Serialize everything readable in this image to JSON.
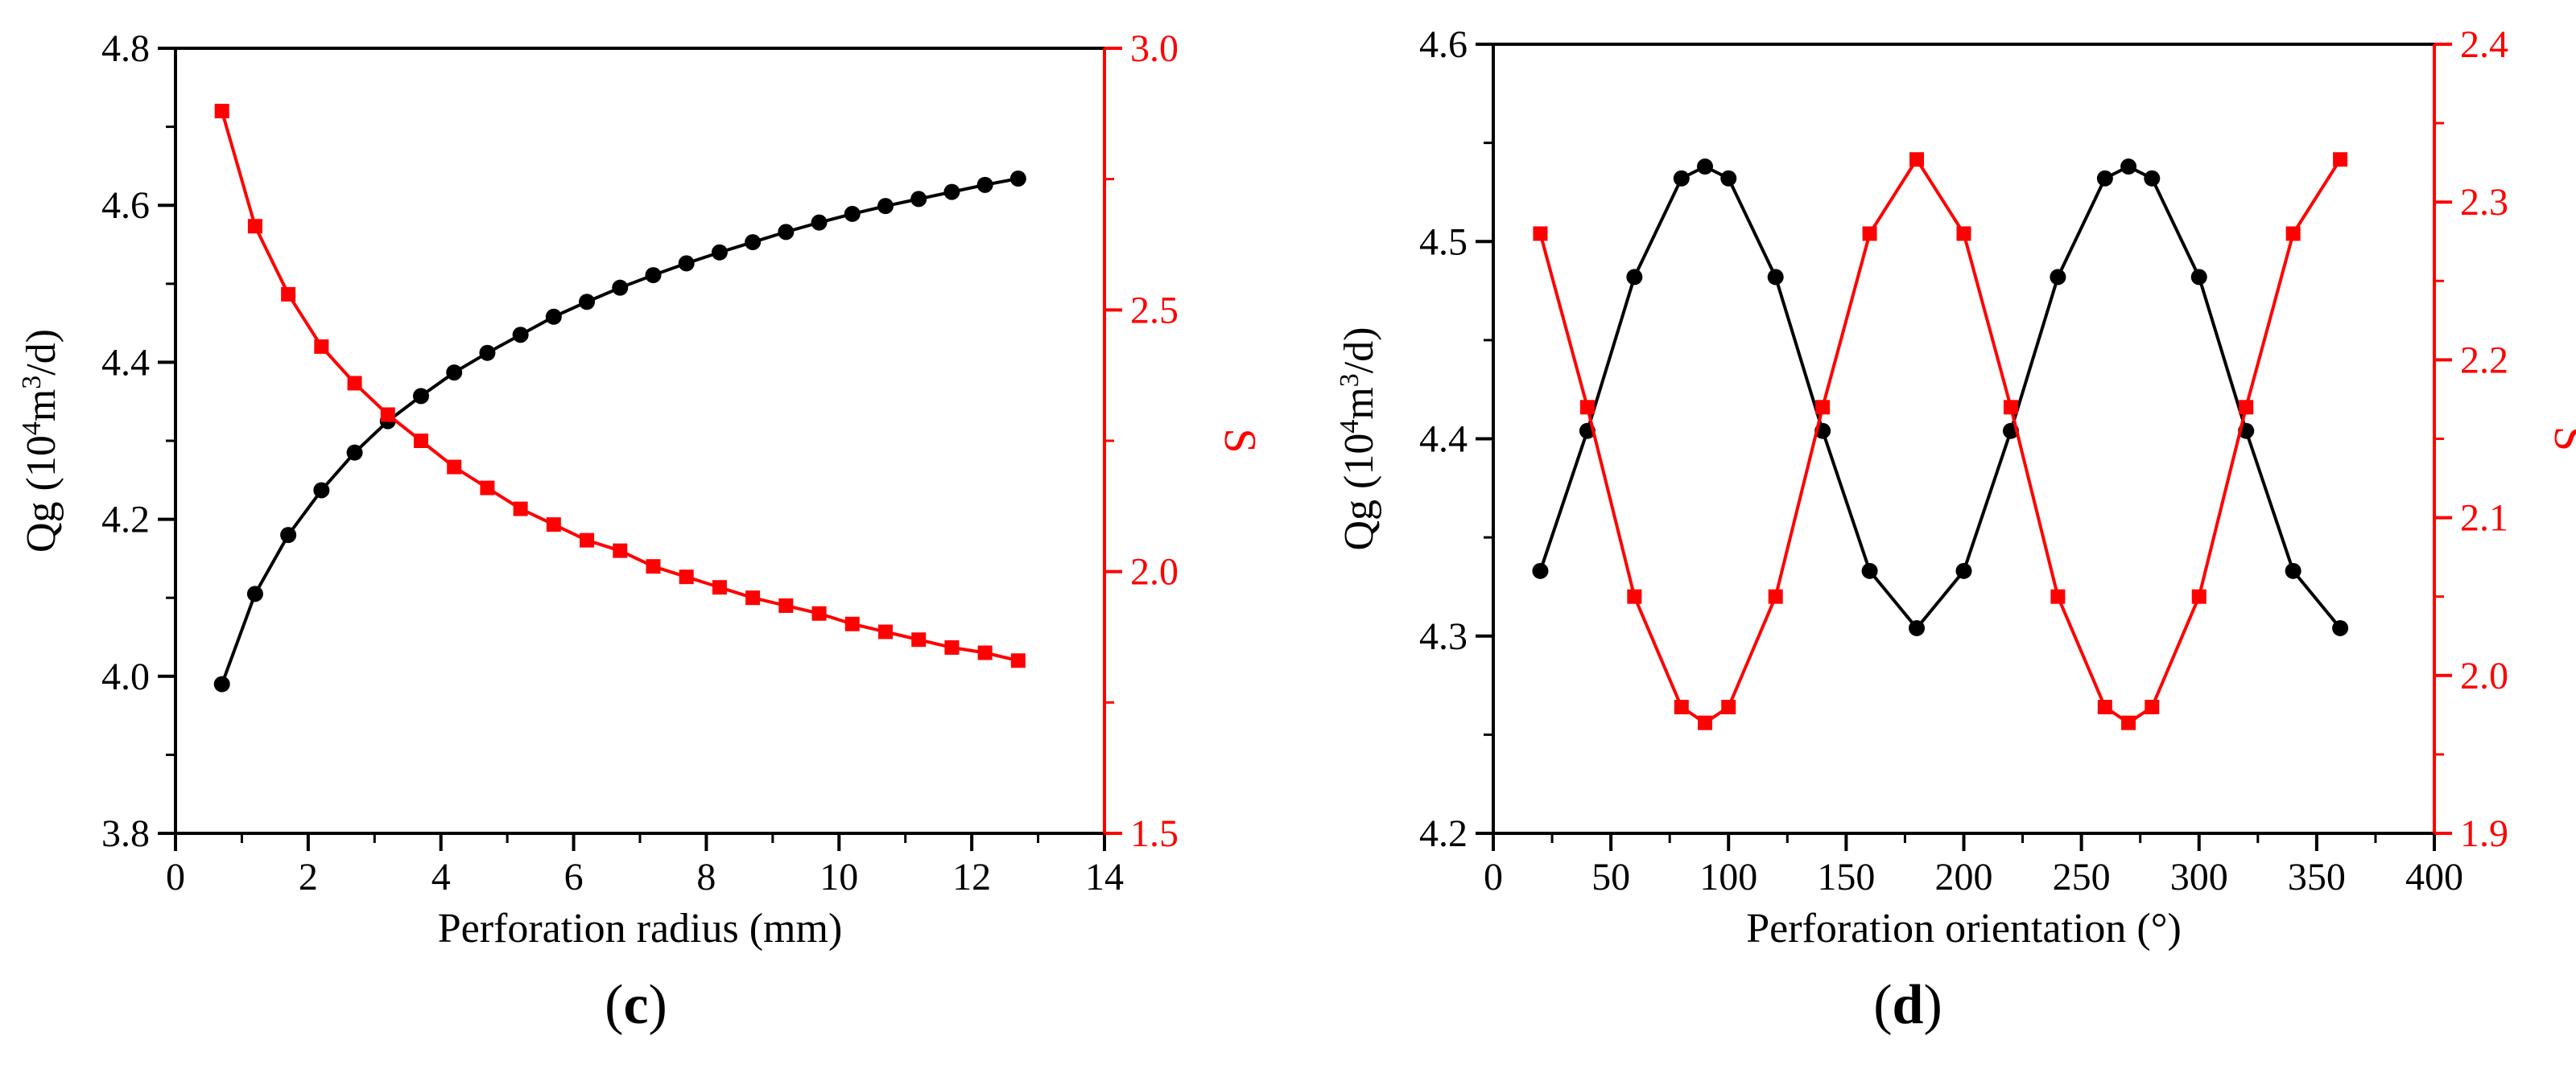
{
  "colors": {
    "qg": "#000000",
    "s": "#ff0000",
    "axis": "#000000"
  },
  "chart_data": [
    {
      "type": "line",
      "panel_label": "c",
      "xlabel": "Perforation radius (mm)",
      "ylabel": "Qg (10",
      "ylabel_sup1": "4",
      "ylabel_mid": "m",
      "ylabel_sup2": "3",
      "ylabel_end": "/d)",
      "y2label": "S",
      "xlim": [
        0,
        14
      ],
      "ylim": [
        3.8,
        4.8
      ],
      "y2lim": [
        1.5,
        3.0
      ],
      "xticks": [
        "0",
        "2",
        "4",
        "6",
        "8",
        "10",
        "12",
        "14"
      ],
      "yticks": [
        "3.8",
        "4.0",
        "4.2",
        "4.4",
        "4.6",
        "4.8"
      ],
      "y2ticks": [
        "1.5",
        "2.0",
        "2.5",
        "3.0"
      ],
      "x": [
        0.7,
        1.2,
        1.7,
        2.2,
        2.7,
        3.2,
        3.7,
        4.2,
        4.7,
        5.2,
        5.7,
        6.2,
        6.7,
        7.2,
        7.7,
        8.2,
        8.7,
        9.2,
        9.7,
        10.2,
        10.7,
        11.2,
        11.7,
        12.2,
        12.7
      ],
      "series": [
        {
          "name": "Qg",
          "axis": "left",
          "marker": "circle",
          "values": [
            3.99,
            4.105,
            4.18,
            4.237,
            4.285,
            4.325,
            4.357,
            4.387,
            4.412,
            4.435,
            4.458,
            4.477,
            4.495,
            4.511,
            4.526,
            4.54,
            4.553,
            4.566,
            4.578,
            4.589,
            4.599,
            4.608,
            4.617,
            4.626,
            4.634
          ]
        },
        {
          "name": "S",
          "axis": "right",
          "marker": "square",
          "values": [
            2.88,
            2.66,
            2.53,
            2.43,
            2.36,
            2.3,
            2.25,
            2.2,
            2.16,
            2.12,
            2.09,
            2.06,
            2.04,
            2.01,
            1.99,
            1.97,
            1.95,
            1.935,
            1.92,
            1.9,
            1.885,
            1.87,
            1.855,
            1.845,
            1.83
          ]
        }
      ]
    },
    {
      "type": "line",
      "panel_label": "d",
      "xlabel": "Perforation orientation (°)",
      "ylabel": "Qg (10",
      "ylabel_sup1": "4",
      "ylabel_mid": "m",
      "ylabel_sup2": "3",
      "ylabel_end": "/d)",
      "y2label": "S",
      "xlim": [
        0,
        400
      ],
      "ylim": [
        4.2,
        4.6
      ],
      "y2lim": [
        1.9,
        2.4
      ],
      "xticks": [
        "0",
        "50",
        "100",
        "150",
        "200",
        "250",
        "300",
        "350",
        "400"
      ],
      "yticks": [
        "4.2",
        "4.3",
        "4.4",
        "4.5",
        "4.6"
      ],
      "y2ticks": [
        "1.9",
        "2.0",
        "2.1",
        "2.2",
        "2.3",
        "2.4"
      ],
      "x": [
        20,
        40,
        60,
        80,
        90,
        100,
        120,
        140,
        160,
        180,
        200,
        220,
        240,
        260,
        270,
        280,
        300,
        320,
        340,
        360
      ],
      "series": [
        {
          "name": "Qg",
          "axis": "left",
          "marker": "circle",
          "values": [
            4.333,
            4.404,
            4.482,
            4.532,
            4.538,
            4.532,
            4.482,
            4.404,
            4.333,
            4.304,
            4.333,
            4.404,
            4.482,
            4.532,
            4.538,
            4.532,
            4.482,
            4.404,
            4.333,
            4.304
          ]
        },
        {
          "name": "S",
          "axis": "right",
          "marker": "square",
          "values": [
            2.28,
            2.17,
            2.05,
            1.98,
            1.97,
            1.98,
            2.05,
            2.17,
            2.28,
            2.327,
            2.28,
            2.17,
            2.05,
            1.98,
            1.97,
            1.98,
            2.05,
            2.17,
            2.28,
            2.327
          ]
        }
      ]
    }
  ]
}
